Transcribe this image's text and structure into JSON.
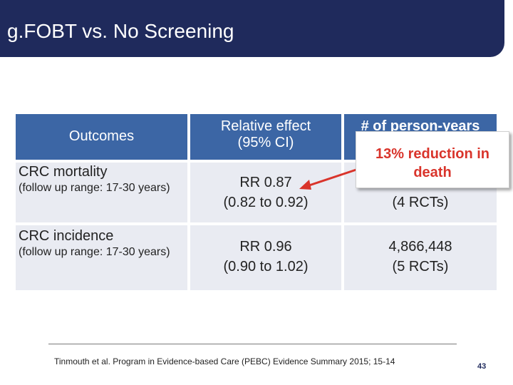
{
  "slide": {
    "title": "g.FOBT vs. No Screening",
    "page_number": "43",
    "footnote": "Tinmouth et al. Program in Evidence-based Care (PEBC) Evidence Summary 2015; 15-14"
  },
  "table": {
    "headers": [
      "Outcomes",
      "Relative effect",
      "(95% CI)",
      "# of person-years"
    ],
    "rows": [
      {
        "outcome": "CRC mortality",
        "followup": "(follow up range: 17-30 years)",
        "effect_line1": "RR 0.87",
        "effect_line2": "(0.82 to 0.92)",
        "py_line1": "",
        "py_line2": "(4 RCTs)"
      },
      {
        "outcome": "CRC incidence",
        "followup": "(follow up range: 17-30 years)",
        "effect_line1": "RR 0.96",
        "effect_line2": "(0.90 to 1.02)",
        "py_line1": "4,866,448",
        "py_line2": "(5 RCTs)"
      }
    ]
  },
  "callout": {
    "text": "13% reduction in death"
  },
  "colors": {
    "title_bar": "#1f2a5c",
    "header": "#3c66a5",
    "row_bg": "#e9ebf2",
    "callout_text": "#d9342b"
  }
}
